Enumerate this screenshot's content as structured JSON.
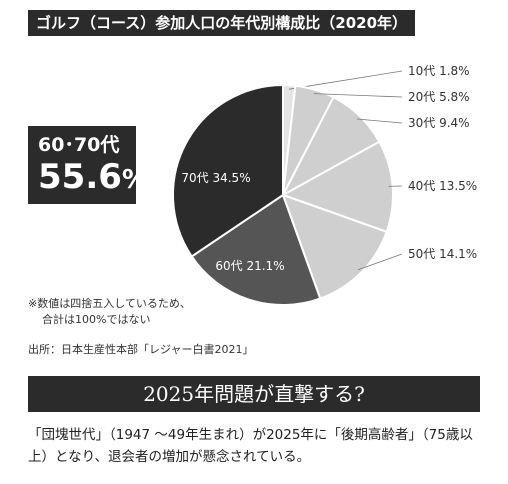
{
  "header": {
    "title": "ゴルフ（コース）参加人口の年代別構成比（2020年）"
  },
  "highlight": {
    "label": "60･70代",
    "value": "55.6",
    "unit": "%"
  },
  "notes": {
    "line1": "※数値は四捨五入しているため、",
    "line2": "合計は100%ではない",
    "source": "出所：日本生産性本部「レジャー白書2021」"
  },
  "banner": {
    "text": "2025年問題が直撃する?"
  },
  "body": {
    "text": "「団塊世代」（1947 ～49年生まれ）が2025年に「後期高齢者」（75歳以上）となり、退会者の増加が懸念されている。"
  },
  "chart_data": {
    "type": "pie",
    "title": "ゴルフ（コース）参加人口の年代別構成比（2020年）",
    "slices": [
      {
        "label": "10代",
        "value": 1.8,
        "display": "10代  1.8%",
        "color": "#e4e4e4"
      },
      {
        "label": "20代",
        "value": 5.8,
        "display": "20代  5.8%",
        "color": "#cfcfcf"
      },
      {
        "label": "30代",
        "value": 9.4,
        "display": "30代  9.4%",
        "color": "#cfcfcf"
      },
      {
        "label": "40代",
        "value": 13.5,
        "display": "40代  13.5%",
        "color": "#cfcfcf"
      },
      {
        "label": "50代",
        "value": 14.1,
        "display": "50代  14.1%",
        "color": "#cfcfcf"
      },
      {
        "label": "60代",
        "value": 21.1,
        "display": "60代  21.1%",
        "color": "#555555"
      },
      {
        "label": "70代",
        "value": 34.5,
        "display": "70代  34.5%",
        "color": "#2b2b2b"
      }
    ]
  }
}
